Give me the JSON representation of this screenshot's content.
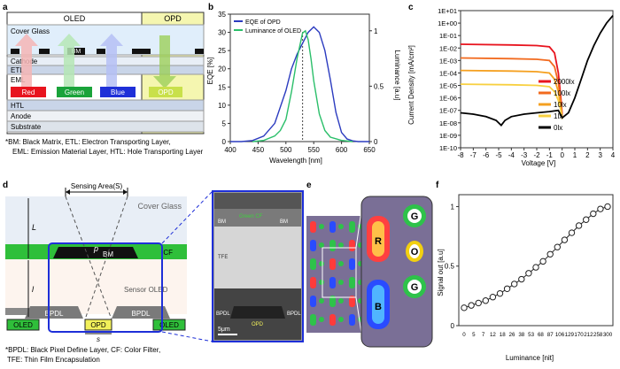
{
  "panel_labels": {
    "a": "a",
    "b": "b",
    "c": "c",
    "d": "d",
    "e": "e",
    "f": "f"
  },
  "colors": {
    "oled_red": "#e8141e",
    "oled_green": "#1aa33a",
    "oled_blue": "#1e2fd8",
    "opd_yellow": "#f2f07a",
    "eqe": "#2b3bbf",
    "lum": "#2bbf6a",
    "cf_green": "#2fbf3a",
    "bpdl_gray": "#8a8a8a",
    "frame_blue": "#1e2fd8"
  },
  "panel_a": {
    "oled_title": "OLED",
    "opd_title": "OPD",
    "layers": {
      "cover": "Cover Glass",
      "bm": "BM",
      "cathode": "Cathode",
      "etl": "ETL",
      "eml": "EML",
      "htl": "HTL",
      "anode": "Anode",
      "substrate": "Substrate"
    },
    "pixels": {
      "red": "Red",
      "green": "Green",
      "blue": "Blue",
      "opd": "OPD"
    },
    "caption_line1": "*BM: Black Matrix, ETL: Electron Transporting Layer,",
    "caption_line2": "EML: Emission Material Layer, HTL: Hole Transporting Layer"
  },
  "panel_d": {
    "sensing_area": "Sensing Area(S)",
    "cover": "Cover Glass",
    "L": "L",
    "l": "l",
    "p": "p",
    "s": "s",
    "bm": "BM",
    "cf": "CF",
    "sensor_oled": "Sensor OLED",
    "bpdl_left": "BPDL",
    "bpdl_right": "BPDL",
    "oled_left": "OLED",
    "oled_right": "OLED",
    "opd": "OPD",
    "sem": {
      "bm_left": "BM",
      "green_cf": "Green CF",
      "bm_right": "BM",
      "tfe": "TFE",
      "bpdl_left": "BPDL",
      "bpdl_right": "BPDL",
      "opd": "OPD",
      "scale": "5μm"
    },
    "caption_line1": "*BPDL: Black Pixel Define Layer, CF: Color Filter,",
    "caption_line2": "TFE: Thin Film Encapsulation"
  },
  "panel_e": {
    "labels": {
      "r": "R",
      "g1": "G",
      "o": "O",
      "b": "B",
      "g2": "G"
    }
  },
  "chart_data": [
    {
      "id": "b",
      "type": "line",
      "xlabel": "Wavelength [nm]",
      "ylabel": "EQE [%]",
      "y2label": "Luminance [a.u]",
      "xlim": [
        400,
        650
      ],
      "ylim": [
        0,
        35
      ],
      "y2lim": [
        0,
        1.15
      ],
      "xticks": [
        "400",
        "450",
        "500",
        "550",
        "600",
        "650"
      ],
      "yticks": [
        "0",
        "5",
        "10",
        "15",
        "20",
        "25",
        "30",
        "35"
      ],
      "y2ticks": [
        "0",
        "0.5",
        "1"
      ],
      "marker_x": 530,
      "series": [
        {
          "name": "EQE of OPD",
          "axis": "left",
          "x": [
            400,
            420,
            440,
            460,
            480,
            500,
            510,
            520,
            530,
            540,
            550,
            560,
            570,
            580,
            590,
            600,
            610,
            620,
            630,
            650
          ],
          "y": [
            0,
            0,
            0.3,
            1.5,
            5,
            14,
            20,
            24,
            27,
            30,
            31.5,
            30,
            25,
            17,
            8,
            2.5,
            0.7,
            0.2,
            0,
            0
          ]
        },
        {
          "name": "Luminance of OLED",
          "axis": "right",
          "x": [
            440,
            460,
            480,
            490,
            500,
            510,
            520,
            530,
            535,
            540,
            545,
            550,
            560,
            570,
            580,
            600,
            620
          ],
          "y": [
            0,
            0.01,
            0.05,
            0.1,
            0.2,
            0.45,
            0.75,
            0.98,
            1.0,
            0.92,
            0.75,
            0.55,
            0.25,
            0.1,
            0.04,
            0.01,
            0
          ]
        }
      ]
    },
    {
      "id": "c",
      "type": "line",
      "xlabel": "Voltage [V]",
      "ylabel": "Current Density [mA/cm²]",
      "xlim": [
        -8,
        4
      ],
      "ylim_log10": [
        -10,
        1
      ],
      "xticks": [
        "-8",
        "-7",
        "-6",
        "-5",
        "-4",
        "-3",
        "-2",
        "-1",
        "0",
        "1",
        "2",
        "3",
        "4"
      ],
      "yticks": [
        "1E+01",
        "1E+00",
        "1E-01",
        "1E-02",
        "1E-03",
        "1E-04",
        "1E-05",
        "1E-06",
        "1E-07",
        "1E-08",
        "1E-09",
        "1E-10"
      ],
      "series": [
        {
          "name": "2000lx",
          "color": "#e8141e",
          "x": [
            -8,
            -4,
            -2,
            -1,
            -0.6,
            -0.3,
            -0.1,
            0
          ],
          "log10y": [
            -1.7,
            -1.75,
            -1.8,
            -1.9,
            -2.4,
            -4,
            -6,
            -7.3
          ]
        },
        {
          "name": "100lx",
          "color": "#f26a1e",
          "x": [
            -8,
            -4,
            -2,
            -1,
            -0.6,
            -0.3,
            -0.1,
            0
          ],
          "log10y": [
            -2.8,
            -2.85,
            -2.9,
            -3.0,
            -3.5,
            -4.8,
            -6.3,
            -7.5
          ]
        },
        {
          "name": "10lx",
          "color": "#f5a020",
          "x": [
            -8,
            -4,
            -2,
            -1,
            -0.6,
            -0.3,
            -0.1,
            0
          ],
          "log10y": [
            -3.8,
            -3.85,
            -3.9,
            -4.0,
            -4.5,
            -5.5,
            -6.8,
            -7.6
          ]
        },
        {
          "name": "1lx",
          "color": "#f8d040",
          "x": [
            -8,
            -4,
            -2,
            -1,
            -0.6,
            -0.3,
            -0.1,
            0
          ],
          "log10y": [
            -4.9,
            -4.95,
            -5.0,
            -5.1,
            -5.5,
            -6.2,
            -7.0,
            -7.7
          ]
        },
        {
          "name": "0lx",
          "color": "#000000",
          "x": [
            -8,
            -7,
            -6,
            -5.2,
            -4.8,
            -4.5,
            -4,
            -3,
            -2,
            -1,
            -0.3,
            0,
            0.5,
            1,
            1.5,
            2,
            2.5,
            3,
            3.5,
            4
          ],
          "log10y": [
            -7.2,
            -7.3,
            -7.5,
            -7.8,
            -8.2,
            -7.8,
            -7.5,
            -7.3,
            -7.2,
            -7.1,
            -7.0,
            -7.6,
            -7.2,
            -6.0,
            -4.5,
            -3.0,
            -1.8,
            -0.8,
            0.0,
            0.6
          ]
        }
      ]
    },
    {
      "id": "f",
      "type": "line",
      "xlabel": "Luminance [nit]",
      "ylabel": "Signal out [a.u]",
      "xticks": [
        "0",
        "5",
        "7",
        "12",
        "18",
        "26",
        "38",
        "53",
        "68",
        "87",
        "106",
        "129",
        "170",
        "212",
        "258",
        "300"
      ],
      "yticks": [
        "0",
        "0.5",
        "1"
      ],
      "ylim": [
        0,
        1.1
      ],
      "values": [
        0.15,
        0.17,
        0.19,
        0.21,
        0.24,
        0.27,
        0.31,
        0.35,
        0.39,
        0.44,
        0.49,
        0.54,
        0.6,
        0.66,
        0.72,
        0.78,
        0.84,
        0.89,
        0.94,
        0.98,
        1.0
      ]
    }
  ]
}
